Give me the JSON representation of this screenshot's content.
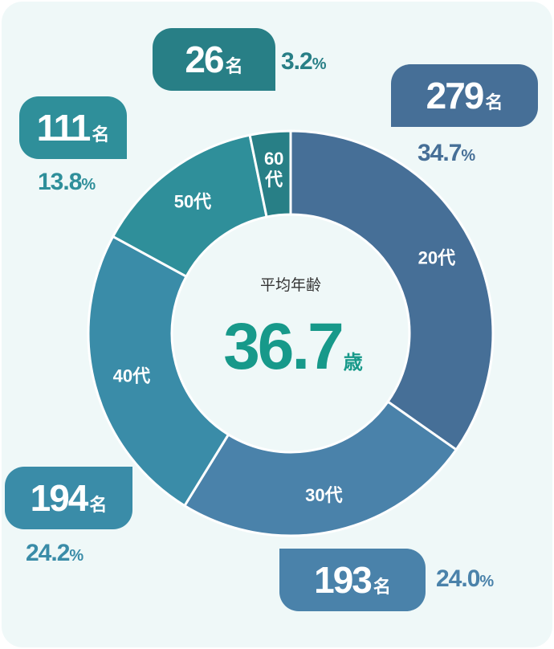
{
  "chart_data": {
    "type": "pie",
    "variant": "donut",
    "categories": [
      "20代",
      "30代",
      "40代",
      "50代",
      "60代"
    ],
    "values": [
      279,
      193,
      194,
      111,
      26
    ],
    "percents": [
      "34.7",
      "24.0",
      "24.2",
      "13.8",
      "3.2"
    ],
    "count_unit": "名",
    "percent_unit": "%",
    "colors": [
      "#466f97",
      "#4a82aa",
      "#3a8ca8",
      "#2f8f9a",
      "#287f86"
    ],
    "center": {
      "label": "平均年齢",
      "value": "36.7",
      "unit": "歳"
    }
  }
}
